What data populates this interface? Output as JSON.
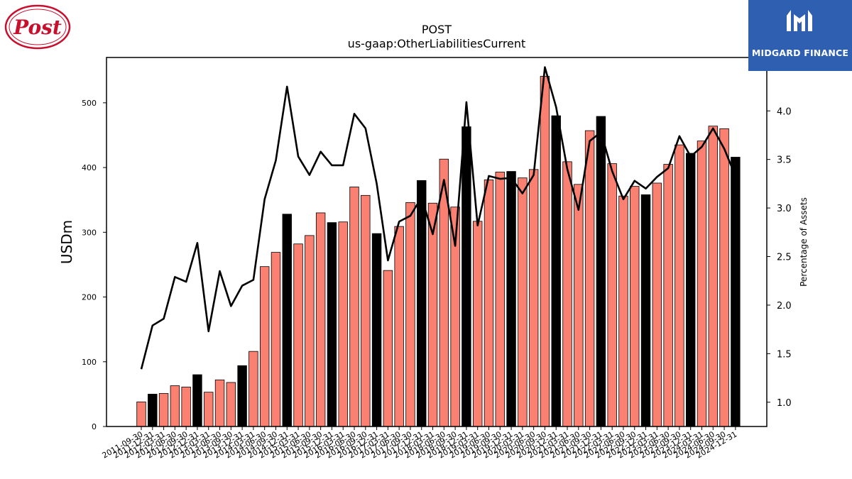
{
  "brand": {
    "left_logo_text": "Post",
    "right_logo_text": "MIDGARD FINANCE",
    "right_logo_bg": "#2f5fb0"
  },
  "chart_data": {
    "type": "bar",
    "title": "POST",
    "subtitle": "us-gaap:OtherLiabilitiesCurrent",
    "ylabel": "USDm",
    "y2label": "Percentage of Assets",
    "ylim": [
      0,
      570
    ],
    "y2lim": [
      0.75,
      4.55
    ],
    "yticks": [
      0,
      100,
      200,
      300,
      400,
      500
    ],
    "y2ticks": [
      1.0,
      1.5,
      2.0,
      2.5,
      3.0,
      3.5,
      4.0
    ],
    "colors": {
      "annual": "#000000",
      "quarter": "#fa8072",
      "line": "#000000"
    },
    "categories": [
      "2011-09-30",
      "2011-12-31",
      "2012-03-31",
      "2012-06-30",
      "2012-09-30",
      "2012-12-31",
      "2013-03-31",
      "2013-06-30",
      "2013-09-30",
      "2013-12-31",
      "2014-03-31",
      "2014-06-30",
      "2014-09-30",
      "2014-12-31",
      "2015-03-31",
      "2015-06-30",
      "2015-09-30",
      "2015-12-31",
      "2016-03-31",
      "2016-06-30",
      "2016-09-30",
      "2016-12-31",
      "2017-03-31",
      "2017-06-30",
      "2017-09-30",
      "2017-12-31",
      "2018-03-31",
      "2018-06-30",
      "2018-09-30",
      "2018-12-31",
      "2019-03-31",
      "2019-06-30",
      "2019-09-30",
      "2019-12-31",
      "2020-03-31",
      "2020-06-30",
      "2020-09-30",
      "2020-12-31",
      "2021-03-31",
      "2021-06-30",
      "2021-09-30",
      "2021-12-31",
      "2022-03-31",
      "2022-06-30",
      "2022-09-30",
      "2022-12-31",
      "2023-03-31",
      "2023-06-30",
      "2023-09-30",
      "2023-12-31",
      "2024-03-31",
      "2024-06-30",
      "2024-09-30",
      "2024-12-31"
    ],
    "values": [
      38,
      50,
      51,
      63,
      61,
      80,
      53,
      72,
      68,
      94,
      116,
      247,
      269,
      328,
      282,
      295,
      330,
      315,
      316,
      370,
      357,
      298,
      241,
      309,
      346,
      380,
      345,
      413,
      339,
      463,
      317,
      381,
      393,
      394,
      384,
      397,
      541,
      480,
      409,
      374,
      457,
      479,
      406,
      356,
      371,
      358,
      376,
      405,
      435,
      422,
      441,
      464,
      460,
      416
    ],
    "annual": [
      false,
      true,
      false,
      false,
      false,
      true,
      false,
      false,
      false,
      true,
      false,
      false,
      false,
      true,
      false,
      false,
      false,
      true,
      false,
      false,
      false,
      true,
      false,
      false,
      false,
      true,
      false,
      false,
      false,
      true,
      false,
      false,
      false,
      true,
      false,
      false,
      false,
      true,
      false,
      false,
      false,
      true,
      false,
      false,
      false,
      true,
      false,
      false,
      false,
      true,
      false,
      false,
      false,
      true
    ],
    "series": [
      {
        "name": "Percentage of Assets",
        "values": [
          1.34,
          1.79,
          1.86,
          2.29,
          2.24,
          2.64,
          1.73,
          2.35,
          1.99,
          2.2,
          2.26,
          3.09,
          3.49,
          4.25,
          3.53,
          3.34,
          3.58,
          3.44,
          3.44,
          3.97,
          3.82,
          3.25,
          2.46,
          2.86,
          2.92,
          3.11,
          2.73,
          3.29,
          2.61,
          4.09,
          2.82,
          3.33,
          3.3,
          3.31,
          3.15,
          3.34,
          4.45,
          4.04,
          3.4,
          2.98,
          3.69,
          3.78,
          3.38,
          3.09,
          3.28,
          3.2,
          3.32,
          3.41,
          3.74,
          3.53,
          3.63,
          3.82,
          3.61,
          3.33
        ]
      }
    ]
  }
}
